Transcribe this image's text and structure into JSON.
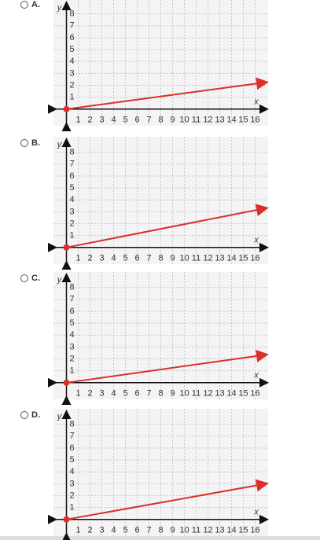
{
  "chart_data": [
    {
      "type": "line",
      "title": "A.",
      "xlabel": "x",
      "ylabel": "y",
      "x": [
        0,
        16.9
      ],
      "values": [
        0,
        2.25
      ],
      "color": "#d9302c",
      "xlim": [
        -1.1,
        17.1
      ],
      "ylim": [
        -1.4,
        9.3
      ],
      "xticks": [
        1,
        2,
        3,
        4,
        5,
        6,
        7,
        8,
        9,
        10,
        11,
        12,
        13,
        14,
        15,
        16
      ],
      "yticks": [
        1,
        2,
        3,
        4,
        5,
        6,
        7,
        8
      ],
      "grid": true
    },
    {
      "type": "line",
      "title": "B.",
      "xlabel": "x",
      "ylabel": "y",
      "x": [
        0,
        16.9
      ],
      "values": [
        0,
        3.3
      ],
      "color": "#d9302c",
      "xlim": [
        -1.1,
        17.1
      ],
      "ylim": [
        -1.4,
        9.3
      ],
      "xticks": [
        1,
        2,
        3,
        4,
        5,
        6,
        7,
        8,
        9,
        10,
        11,
        12,
        13,
        14,
        15,
        16
      ],
      "yticks": [
        1,
        2,
        3,
        4,
        5,
        6,
        7,
        8
      ],
      "grid": true
    },
    {
      "type": "line",
      "title": "C.",
      "xlabel": "x",
      "ylabel": "y",
      "x": [
        0,
        16.9
      ],
      "values": [
        0,
        2.35
      ],
      "color": "#d9302c",
      "xlim": [
        -1.1,
        17.1
      ],
      "ylim": [
        -1.4,
        9.3
      ],
      "xticks": [
        1,
        2,
        3,
        4,
        5,
        6,
        7,
        8,
        9,
        10,
        11,
        12,
        13,
        14,
        15,
        16
      ],
      "yticks": [
        1,
        2,
        3,
        4,
        5,
        6,
        7,
        8
      ],
      "grid": true
    },
    {
      "type": "line",
      "title": "D.",
      "xlabel": "x",
      "ylabel": "y",
      "x": [
        0,
        16.9
      ],
      "values": [
        0,
        3.0
      ],
      "color": "#d9302c",
      "xlim": [
        -1.1,
        17.1
      ],
      "ylim": [
        -1.4,
        9.3
      ],
      "xticks": [
        1,
        2,
        3,
        4,
        5,
        6,
        7,
        8,
        9,
        10,
        11,
        12,
        13,
        14,
        15,
        16
      ],
      "yticks": [
        1,
        2,
        3,
        4,
        5,
        6,
        7,
        8
      ],
      "grid": true
    }
  ]
}
